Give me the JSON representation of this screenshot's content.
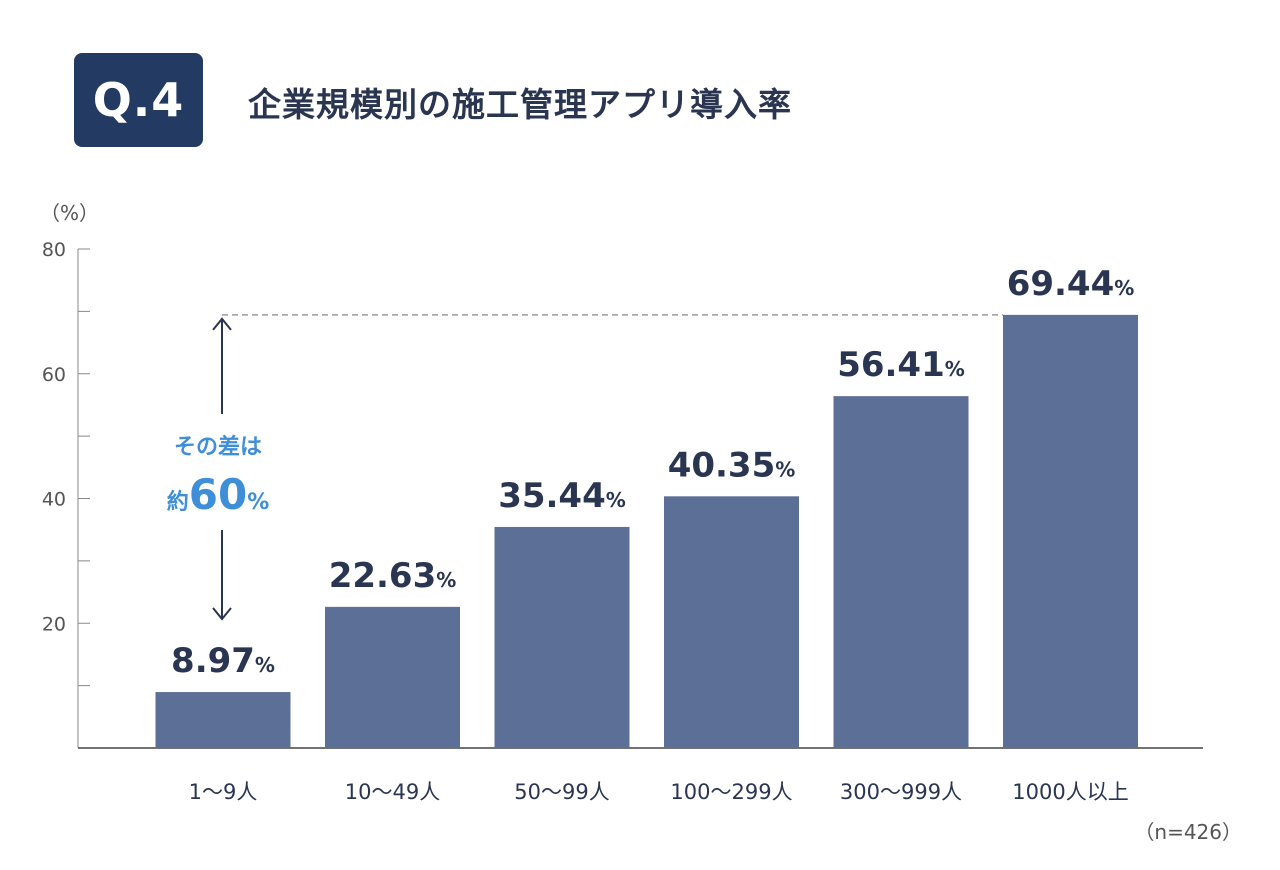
{
  "badge": "Q.4",
  "title": "企業規模別の施工管理アプリ導入率",
  "unit_label": "（%）",
  "sample_label": "（n=426）",
  "annotation": {
    "line1": "その差は",
    "prefix": "約",
    "value": "60",
    "suffix": "%"
  },
  "colors": {
    "bar": "#5c6f97",
    "text": "#2a3552",
    "badge": "#233a63",
    "accent": "#3f8fd8",
    "reference_line": "#9a9a9a"
  },
  "chart_data": {
    "type": "bar",
    "categories": [
      "1～9人",
      "10～49人",
      "50～99人",
      "100～299人",
      "300～999人",
      "1000人以上"
    ],
    "values": [
      8.97,
      22.63,
      35.44,
      40.35,
      56.41,
      69.44
    ],
    "value_labels": [
      "8.97",
      "22.63",
      "35.44",
      "40.35",
      "56.41",
      "69.44"
    ],
    "value_suffix": "%",
    "ylim": [
      0,
      80
    ],
    "yticks": [
      20,
      40,
      60,
      80
    ],
    "minor_ticks": [
      10,
      30,
      50,
      70
    ],
    "grid": false,
    "reference_line_value": 69.44
  }
}
